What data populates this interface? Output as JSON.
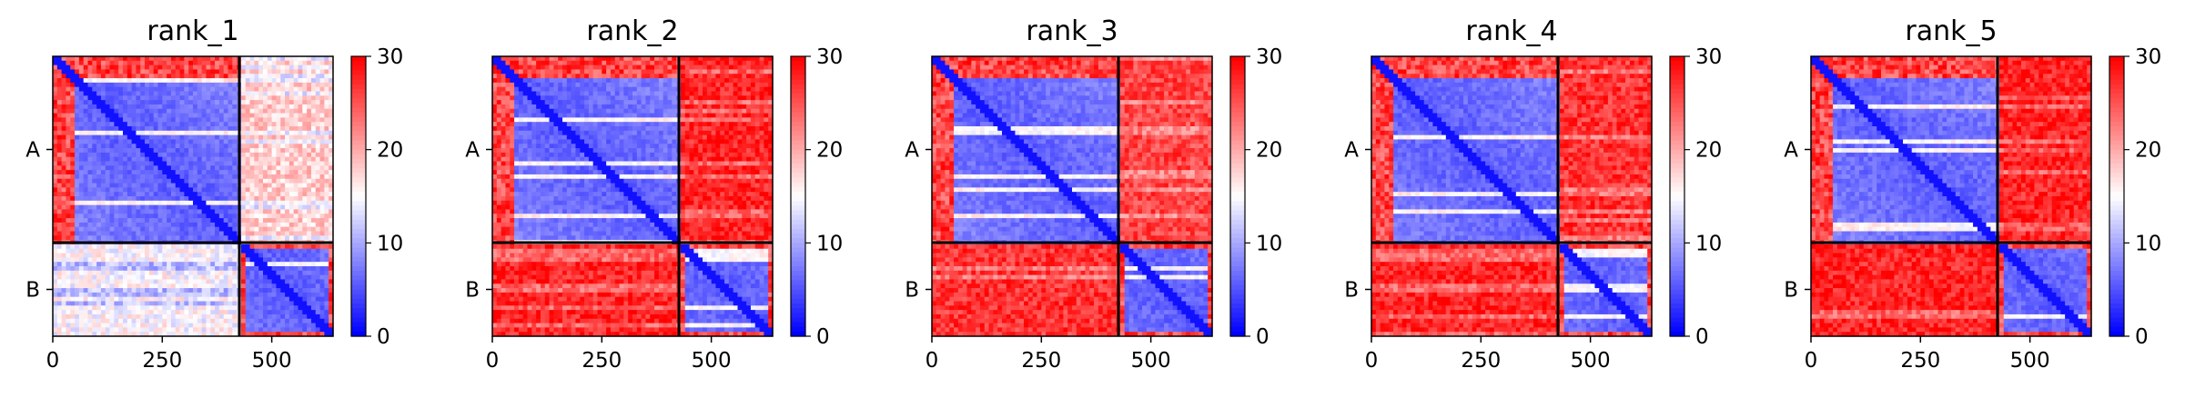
{
  "chart_data": {
    "type": "heatmap",
    "x_range": [
      0,
      640
    ],
    "split_index": 426,
    "colormap": {
      "name": "bwr",
      "low": "#0000ff",
      "mid": "#ffffff",
      "high": "#ff0000"
    },
    "x_ticks": [
      0,
      250,
      500
    ],
    "y_ticks": [
      "A",
      "B"
    ],
    "colorbar": {
      "range": [
        0,
        30
      ],
      "ticks": [
        0,
        10,
        20,
        30
      ]
    },
    "panels": [
      {
        "title": "rank_1",
        "cross_value_AB": 18,
        "cross_value_BA": 15
      },
      {
        "title": "rank_2",
        "cross_value_AB": 28,
        "cross_value_BA": 28
      },
      {
        "title": "rank_3",
        "cross_value_AB": 26,
        "cross_value_BA": 27
      },
      {
        "title": "rank_4",
        "cross_value_AB": 27,
        "cross_value_BA": 28
      },
      {
        "title": "rank_5",
        "cross_value_AB": 28,
        "cross_value_BA": 28
      }
    ]
  }
}
